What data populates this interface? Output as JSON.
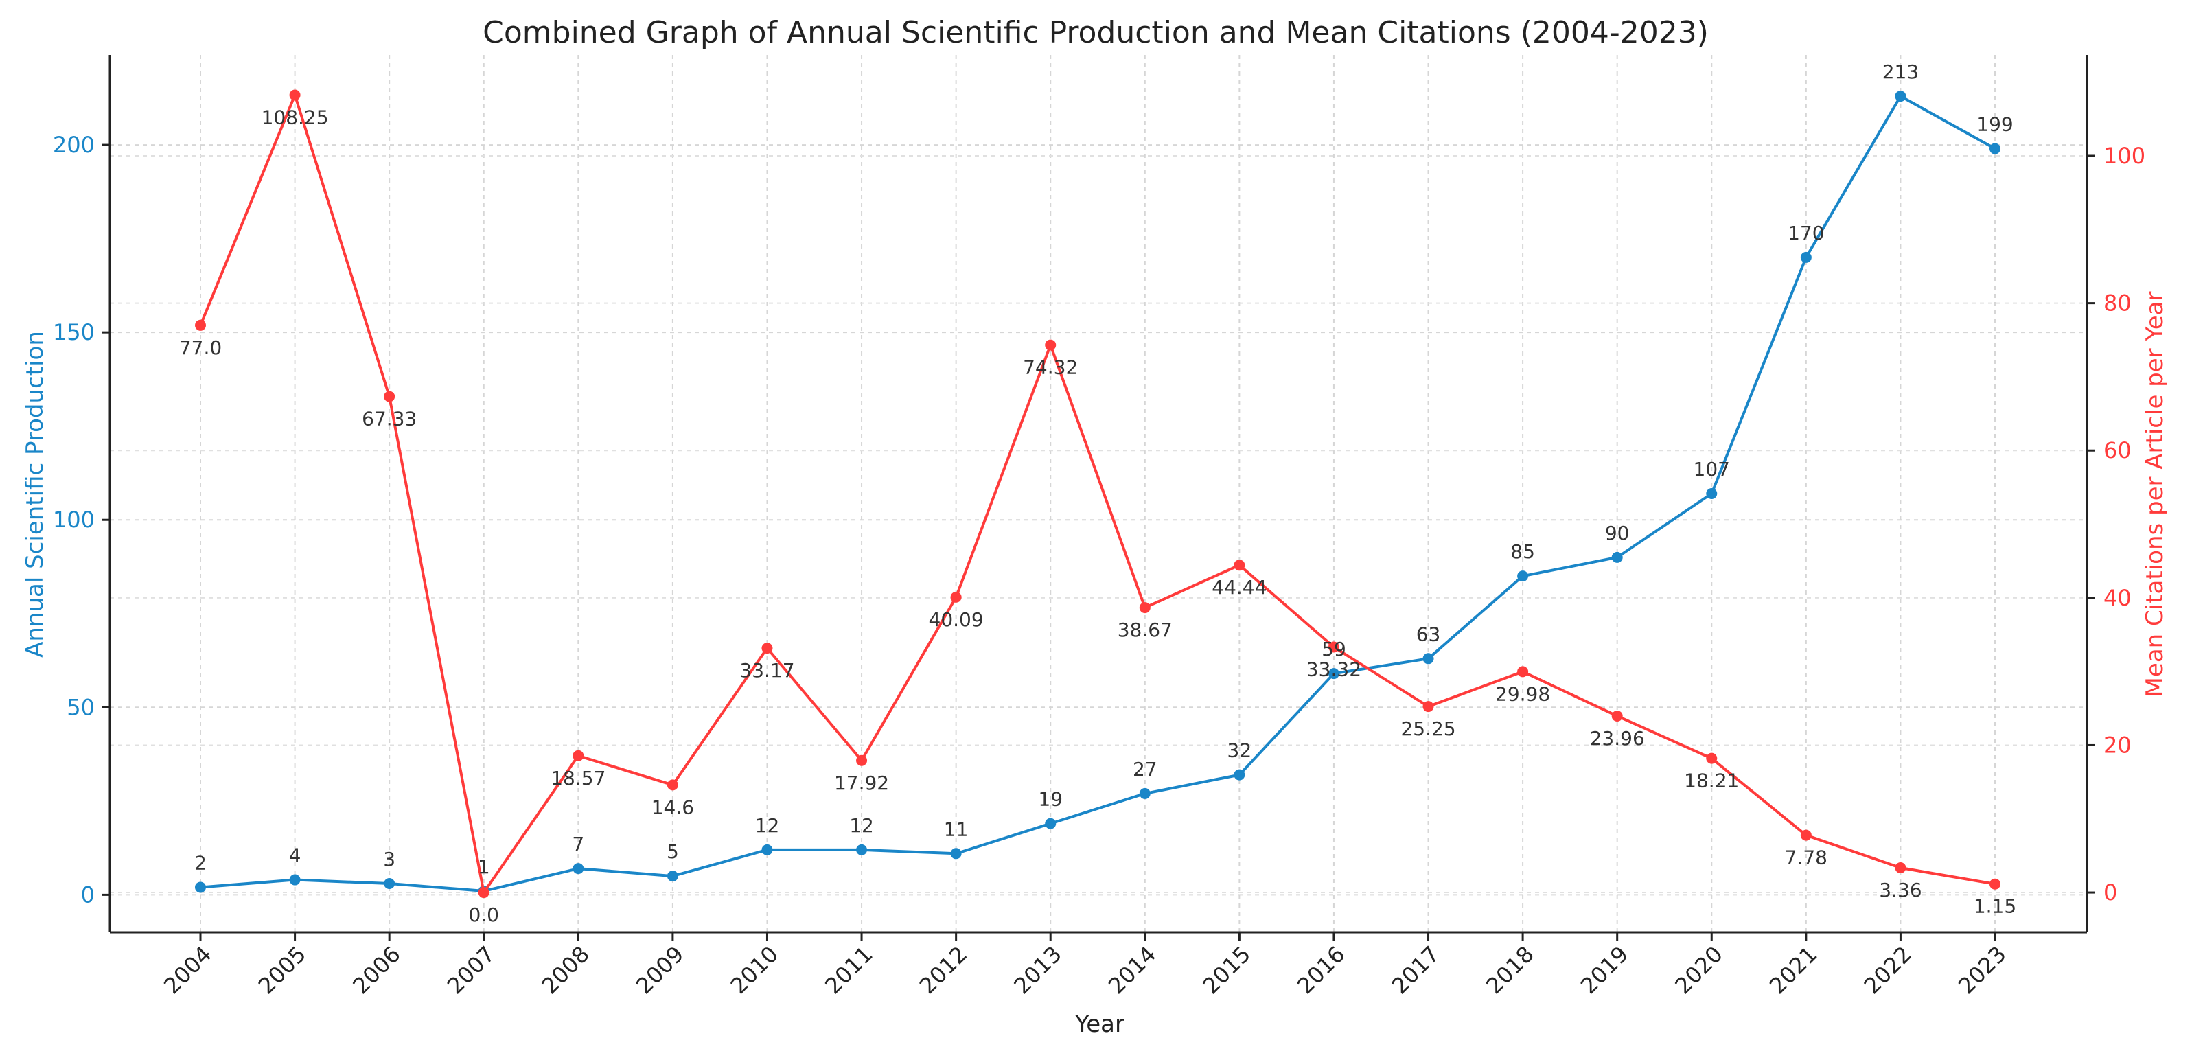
{
  "chart_data": {
    "type": "line",
    "title": "Combined Graph of Annual Scientific Production and Mean Citations (2004-2023)",
    "xlabel": "Year",
    "categories": [
      "2004",
      "2005",
      "2006",
      "2007",
      "2008",
      "2009",
      "2010",
      "2011",
      "2012",
      "2013",
      "2014",
      "2015",
      "2016",
      "2017",
      "2018",
      "2019",
      "2020",
      "2021",
      "2022",
      "2023"
    ],
    "y_left": {
      "label": "Annual Scientific Production",
      "color": "#1a86c8",
      "ylim": [
        -10,
        224
      ],
      "ticks": [
        0,
        50,
        100,
        150,
        200
      ]
    },
    "y_right": {
      "label": "Mean Citations per Article per Year",
      "color": "#ff3b3b",
      "ylim": [
        -5.4,
        113.7
      ],
      "ticks": [
        0,
        20,
        40,
        60,
        80,
        100
      ]
    },
    "grid": true,
    "series": [
      {
        "name": "Annual Scientific Production",
        "axis": "left",
        "color": "#1a86c8",
        "values": [
          2,
          4,
          3,
          1,
          7,
          5,
          12,
          12,
          11,
          19,
          27,
          32,
          59,
          63,
          85,
          90,
          107,
          170,
          213,
          199
        ],
        "labels": [
          "2",
          "4",
          "3",
          "1",
          "7",
          "5",
          "12",
          "12",
          "11",
          "19",
          "27",
          "32",
          "59",
          "63",
          "85",
          "90",
          "107",
          "170",
          "213",
          "199"
        ]
      },
      {
        "name": "Mean Citations per Article per Year",
        "axis": "right",
        "color": "#ff3b3b",
        "values": [
          77.0,
          108.25,
          67.33,
          0.0,
          18.57,
          14.6,
          33.17,
          17.92,
          40.09,
          74.32,
          38.67,
          44.44,
          33.32,
          25.25,
          29.98,
          23.96,
          18.21,
          7.78,
          3.36,
          1.15
        ],
        "labels": [
          "77.0",
          "108.25",
          "67.33",
          "0.0",
          "18.57",
          "14.6",
          "33.17",
          "17.92",
          "40.09",
          "74.32",
          "38.67",
          "44.44",
          "33.32",
          "25.25",
          "29.98",
          "23.96",
          "18.21",
          "7.78",
          "3.36",
          "1.15"
        ]
      }
    ]
  }
}
